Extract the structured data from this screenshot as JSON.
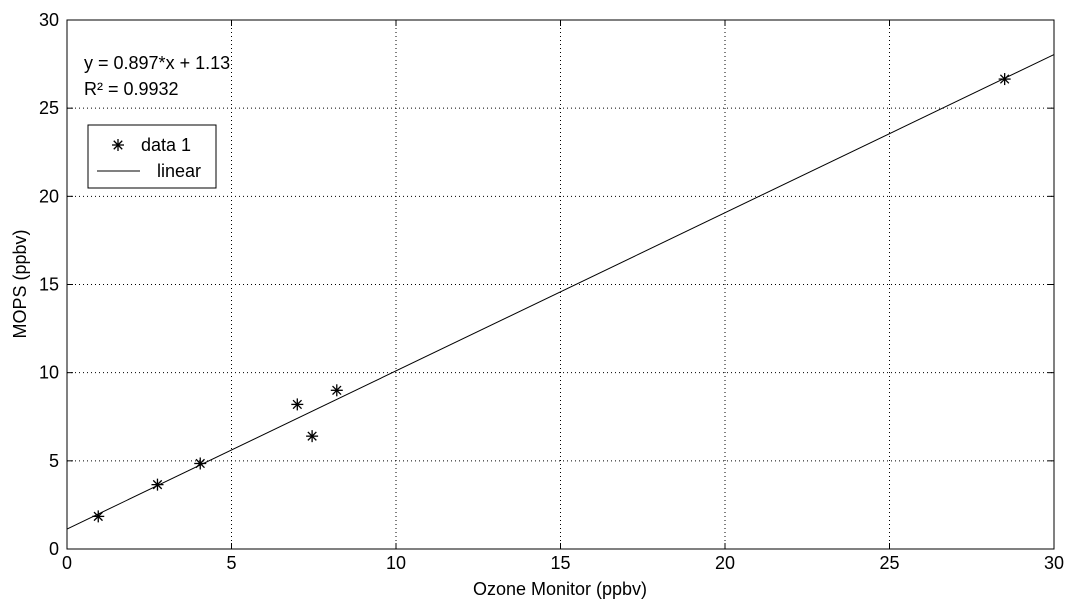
{
  "chart_data": {
    "type": "scatter",
    "xlabel": "Ozone Monitor (ppbv)",
    "ylabel": "MOPS (ppbv)",
    "xlim": [
      0,
      30
    ],
    "ylim": [
      0,
      30
    ],
    "xticks": [
      0,
      5,
      10,
      15,
      20,
      25,
      30
    ],
    "yticks": [
      0,
      5,
      10,
      15,
      20,
      25,
      30
    ],
    "grid": true,
    "series": [
      {
        "name": "data 1",
        "marker": "asterisk",
        "x": [
          0.95,
          2.75,
          4.05,
          7.0,
          7.45,
          8.2,
          28.5
        ],
        "y": [
          1.85,
          3.65,
          4.85,
          8.2,
          6.4,
          9.0,
          26.65
        ]
      },
      {
        "name": "linear",
        "kind": "line",
        "slope": 0.897,
        "intercept": 1.13,
        "x": [
          0,
          30
        ]
      }
    ],
    "annotations": [
      "y = 0.897*x + 1.13",
      "R² = 0.9932"
    ],
    "legend": {
      "placement": "top-left",
      "entries": [
        "data 1",
        "linear"
      ]
    }
  }
}
